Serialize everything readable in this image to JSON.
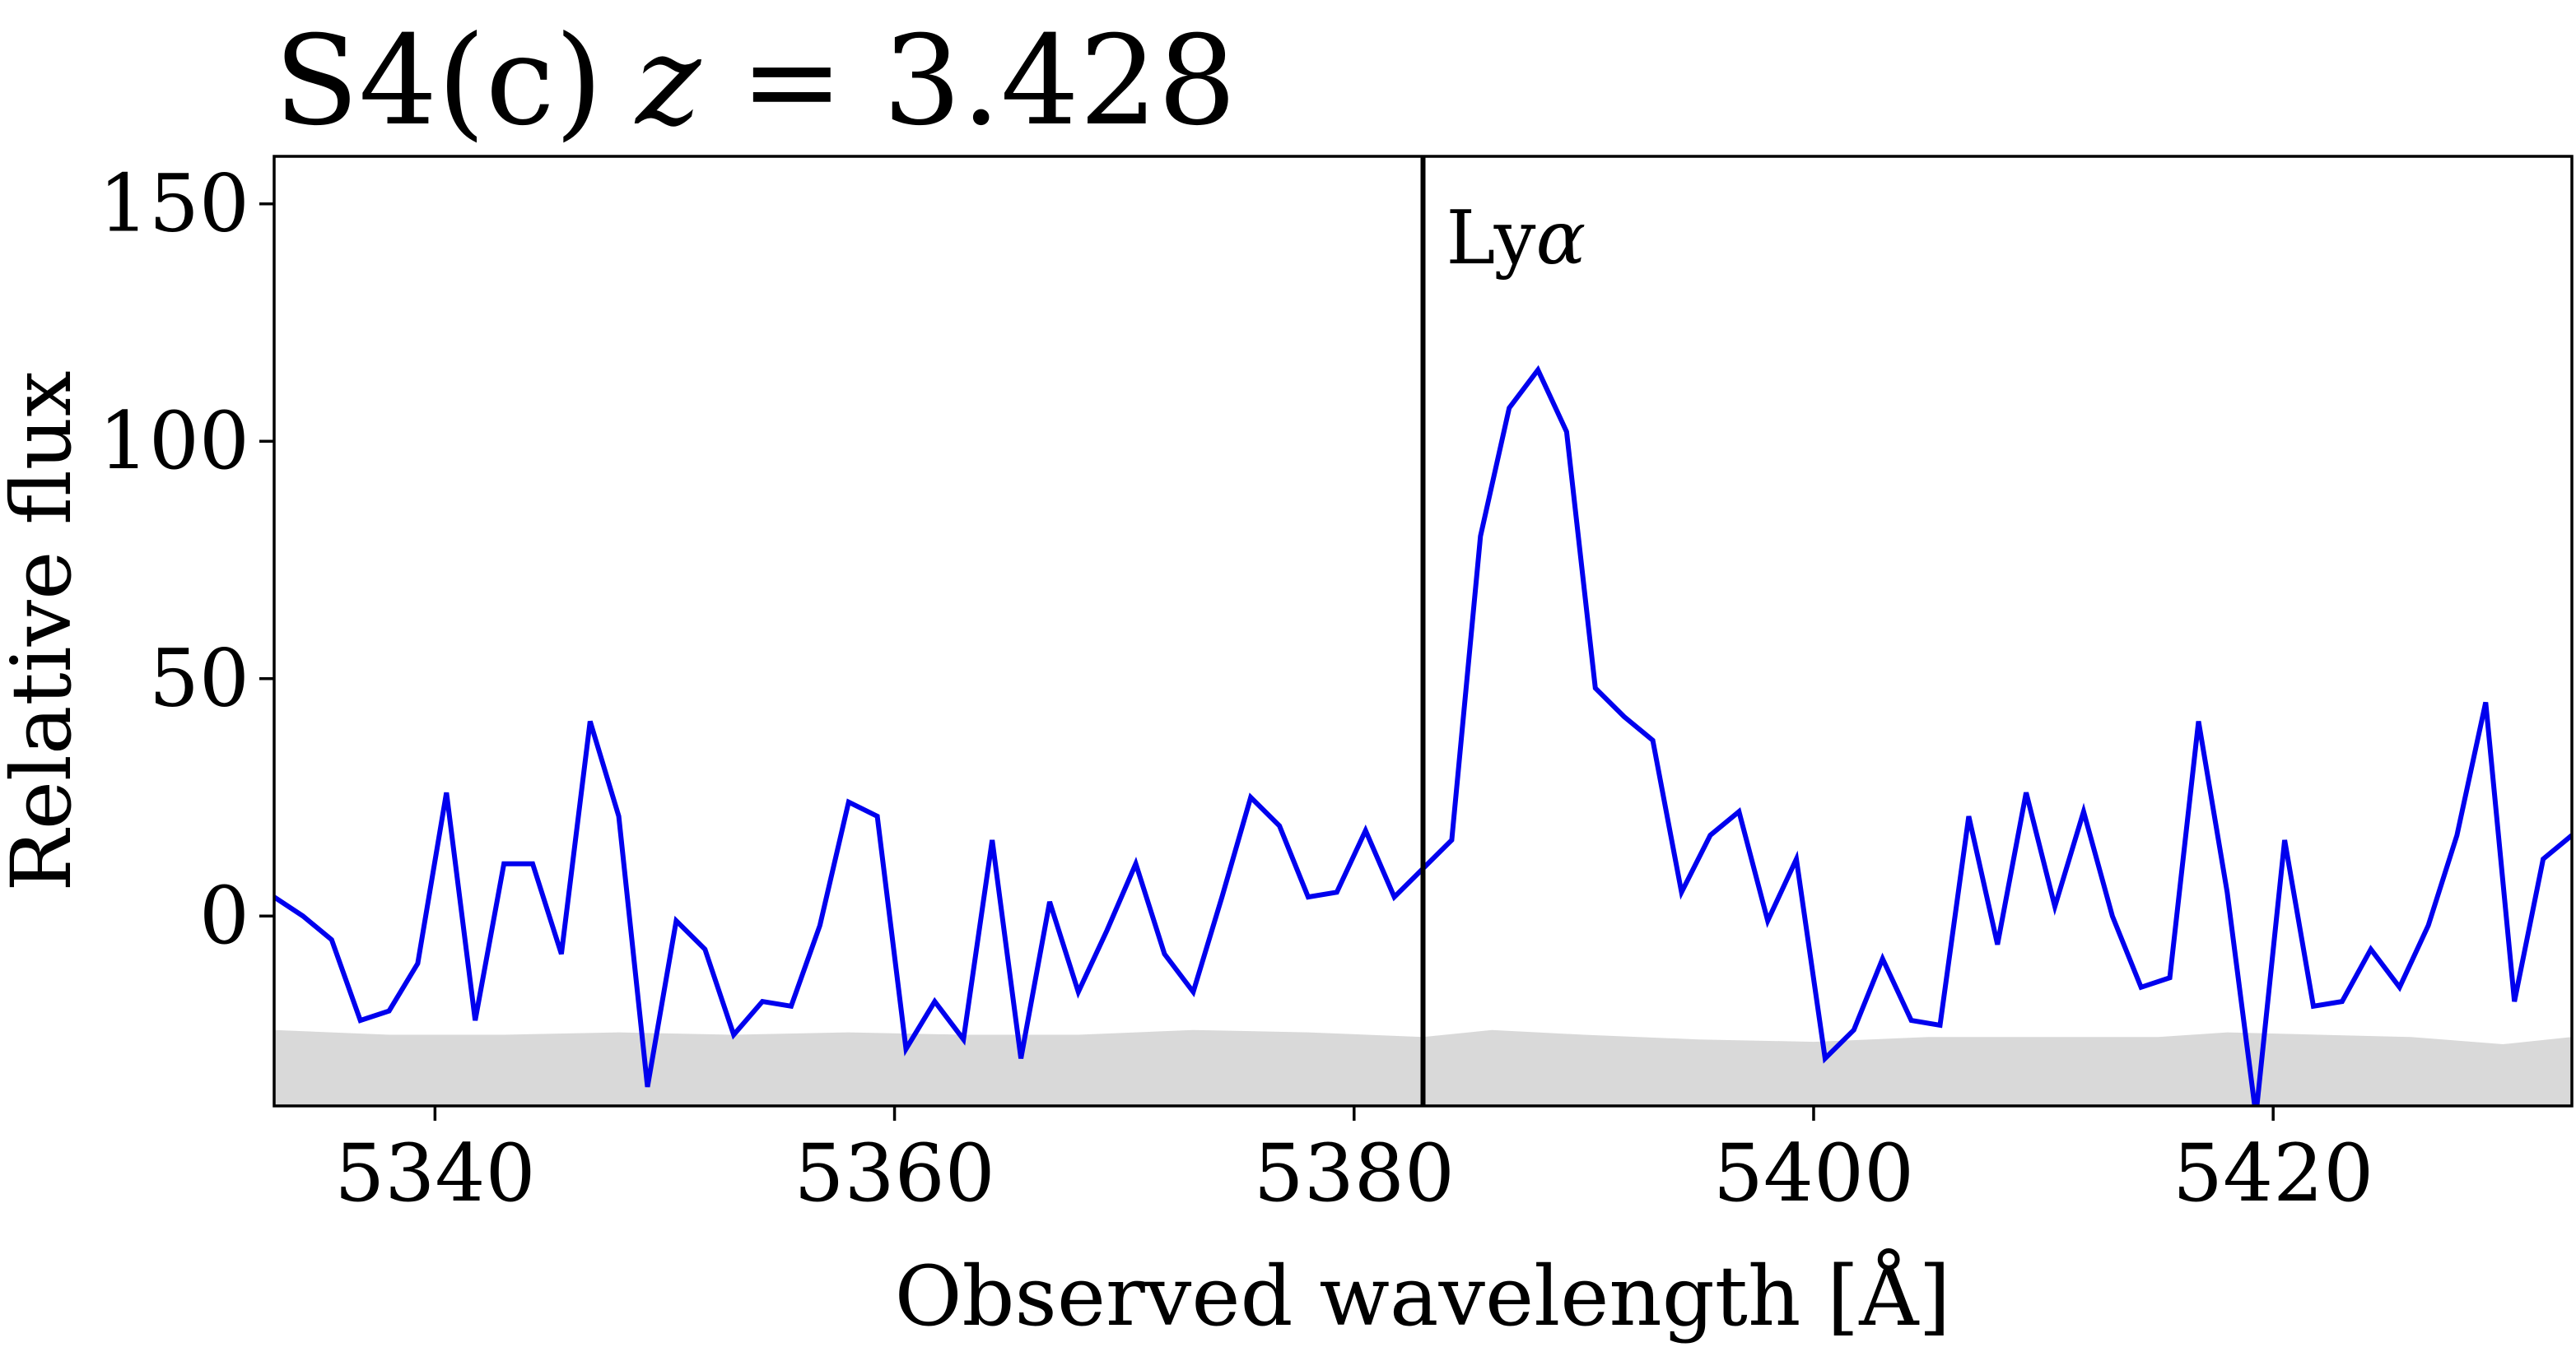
{
  "chart_data": {
    "type": "line",
    "title": "S4(c) z = 3.428",
    "title_parts": {
      "prefix": "S4(c)",
      "variable": "z",
      "equals": " = ",
      "value": "3.428"
    },
    "xlabel": "Observed wavelength [Å]",
    "ylabel": "Relative flux",
    "xlim": [
      5333,
      5433
    ],
    "ylim": [
      -40,
      160
    ],
    "xticks": [
      5340,
      5360,
      5380,
      5400,
      5420
    ],
    "yticks": [
      0,
      50,
      100,
      150
    ],
    "xtick_labels": [
      "5340",
      "5360",
      "5380",
      "5400",
      "5420"
    ],
    "ytick_labels": [
      "0",
      "50",
      "100",
      "150"
    ],
    "grid": false,
    "vline": {
      "x": 5383.0,
      "label": "Lyα",
      "label_parts": {
        "base": "Ly",
        "greek": "α"
      }
    },
    "series": [
      {
        "name": "spectrum",
        "color": "#0000ee",
        "x": [
          5333.0,
          5334.25,
          5335.5,
          5336.75,
          5338.0,
          5339.25,
          5340.5,
          5341.75,
          5343.0,
          5344.25,
          5345.5,
          5346.75,
          5348.0,
          5349.25,
          5350.5,
          5351.75,
          5353.0,
          5354.25,
          5355.5,
          5356.75,
          5358.0,
          5359.25,
          5360.5,
          5361.75,
          5363.0,
          5364.25,
          5365.5,
          5366.75,
          5368.0,
          5369.25,
          5370.5,
          5371.75,
          5373.0,
          5374.25,
          5375.5,
          5376.75,
          5378.0,
          5379.25,
          5380.5,
          5381.75,
          5383.0,
          5384.25,
          5385.5,
          5386.75,
          5388.0,
          5389.25,
          5390.5,
          5391.75,
          5393.0,
          5394.25,
          5395.5,
          5396.75,
          5398.0,
          5399.25,
          5400.5,
          5401.75,
          5403.0,
          5404.25,
          5405.5,
          5406.75,
          5408.0,
          5409.25,
          5410.5,
          5411.75,
          5413.0,
          5414.25,
          5415.5,
          5416.75,
          5418.0,
          5419.25,
          5420.5,
          5421.75,
          5423.0,
          5424.25,
          5425.5,
          5426.75,
          5428.0,
          5429.25,
          5430.5,
          5431.75,
          5433.0
        ],
        "values": [
          4,
          0,
          -5,
          -22,
          -20,
          -10,
          26,
          -22,
          11,
          11,
          -8,
          41,
          21,
          -36,
          -1,
          -7,
          -25,
          -18,
          -19,
          -2,
          24,
          21,
          -28,
          -18,
          -26,
          16,
          -30,
          3,
          -16,
          -3,
          11,
          -8,
          -16,
          4,
          25,
          19,
          4,
          5,
          18,
          4,
          10,
          16,
          80,
          107,
          115,
          102,
          48,
          42,
          37,
          5,
          17,
          22,
          -1,
          12,
          -30,
          -24,
          -9,
          -22,
          -23,
          21,
          -6,
          26,
          2,
          22,
          0,
          -15,
          -13,
          41,
          5,
          -42,
          16,
          -19,
          -18,
          -7,
          -15,
          -2,
          17,
          45,
          -18,
          12,
          17
        ]
      }
    ],
    "error_band": {
      "name": "noise level",
      "color": "#d9d9d9",
      "x": [
        5333,
        5338,
        5343,
        5348,
        5353,
        5358,
        5363,
        5368,
        5373,
        5378,
        5383,
        5386,
        5390,
        5395,
        5400,
        5405,
        5410,
        5415,
        5418,
        5422,
        5426,
        5430,
        5433
      ],
      "values": [
        -24,
        -25,
        -25,
        -24.5,
        -25,
        -24.5,
        -25,
        -25,
        -24,
        -24.5,
        -25.5,
        -24,
        -25,
        -26,
        -26.5,
        -25.5,
        -25.5,
        -25.5,
        -24.5,
        -25,
        -25.5,
        -27,
        -25.5
      ]
    }
  }
}
